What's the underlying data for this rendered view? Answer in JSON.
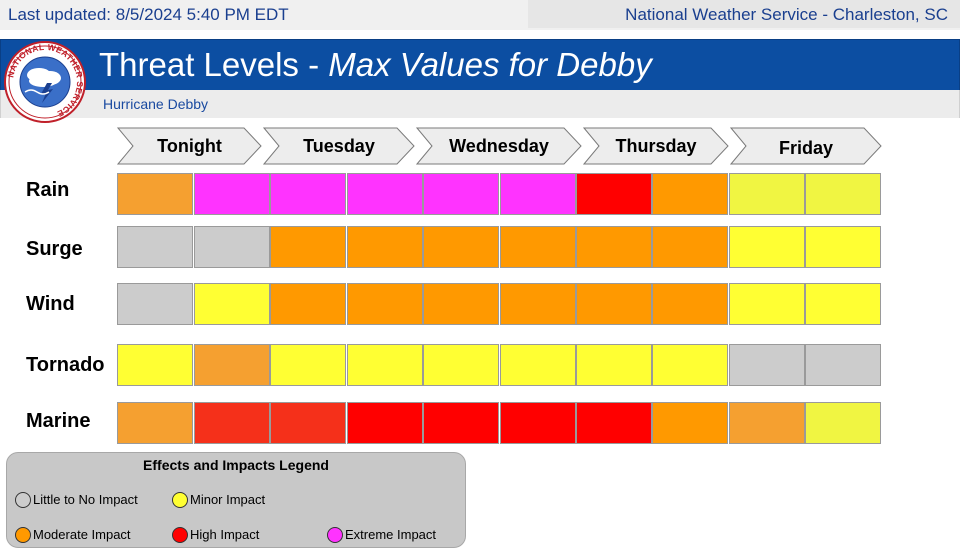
{
  "header": {
    "last_updated": "Last updated: 8/5/2024 5:40 PM EDT",
    "office": "National Weather Service - Charleston, SC",
    "title_main": "Threat Levels - ",
    "title_storm": "Max Values for Debby",
    "subtitle": "Hurricane Debby"
  },
  "logo": {
    "text": "NATIONAL WEATHER SERVICE"
  },
  "days": [
    "Tonight",
    "Tuesday",
    "Wednesday",
    "Thursday",
    "Friday"
  ],
  "levels": {
    "none": "#cccccc",
    "minor": "#ffff33",
    "minor_alt": "#f0f542",
    "moderate": "#ff9900",
    "moderate_alt": "#f5a030",
    "high": "#ff0000",
    "high_alt": "#f5301a",
    "extreme": "#ff33ff"
  },
  "rows": [
    {
      "label": "Rain",
      "cells": [
        "moderate_alt",
        "extreme",
        "extreme",
        "extreme",
        "extreme",
        "extreme",
        "high",
        "moderate",
        "minor_alt",
        "minor_alt"
      ]
    },
    {
      "label": "Surge",
      "cells": [
        "none",
        "none",
        "moderate",
        "moderate",
        "moderate",
        "moderate",
        "moderate",
        "moderate",
        "minor",
        "minor"
      ]
    },
    {
      "label": "Wind",
      "cells": [
        "none",
        "minor",
        "moderate",
        "moderate",
        "moderate",
        "moderate",
        "moderate",
        "moderate",
        "minor",
        "minor"
      ]
    },
    {
      "label": "Tornado",
      "cells": [
        "minor",
        "moderate_alt",
        "minor",
        "minor",
        "minor",
        "minor",
        "minor",
        "minor",
        "none",
        "none"
      ]
    },
    {
      "label": "Marine",
      "cells": [
        "moderate_alt",
        "high_alt",
        "high_alt",
        "high",
        "high",
        "high",
        "high",
        "moderate",
        "moderate_alt",
        "minor_alt"
      ]
    }
  ],
  "legend": {
    "title": "Effects and Impacts Legend",
    "items": [
      {
        "label": "Little to No Impact",
        "color": "#cccccc"
      },
      {
        "label": "Minor Impact",
        "color": "#ffff33"
      },
      {
        "label": "Moderate Impact",
        "color": "#ff9900"
      },
      {
        "label": "High Impact",
        "color": "#ff0000"
      },
      {
        "label": "Extreme Impact",
        "color": "#ff33ff"
      }
    ]
  }
}
